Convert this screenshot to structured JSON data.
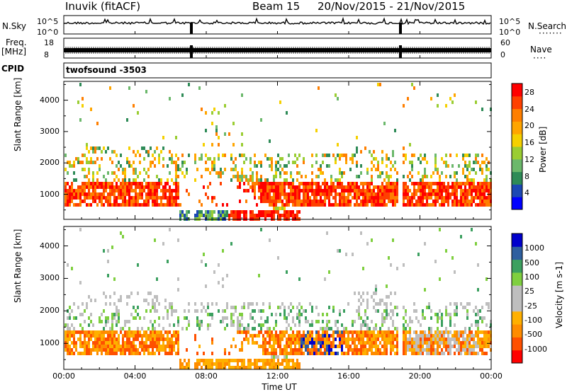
{
  "header": {
    "station": "Inuvik (fitACF)",
    "beam": "Beam 15",
    "dates": "20/Nov/2015 - 21/Nov/2015"
  },
  "top_panels": {
    "nsky": {
      "label": "N.Sky",
      "ticks": [
        "10^5",
        "10^0"
      ]
    },
    "nsearch": {
      "label": "N.Search",
      "ticks": [
        "10^5",
        "10^0"
      ],
      "dots": "·······"
    },
    "freq": {
      "label_line1": "Freq.",
      "label_line2": "[MHz]",
      "ticks": [
        "18",
        "8"
      ]
    },
    "nave": {
      "label": "Nave",
      "ticks": [
        "60",
        "0"
      ],
      "dots": "····"
    },
    "cpid": {
      "label": "CPID",
      "value": "twofsound -3503"
    }
  },
  "colors": {
    "power": [
      "#0000ff",
      "#1c48b4",
      "#2e8b57",
      "#6bb86b",
      "#9acd32",
      "#f5d000",
      "#ffa500",
      "#ff7f00",
      "#ff4000",
      "#ff0000"
    ],
    "velocity": [
      "#ff0000",
      "#ff5000",
      "#ff8c00",
      "#ffb000",
      "#bebebe",
      "#bebebe",
      "#7fcf3f",
      "#3ca060",
      "#2f5f9f",
      "#0000cc"
    ]
  },
  "chart_data": [
    {
      "type": "heatmap",
      "ylabel": "Slant Range [km]",
      "xlabel": "",
      "x_ticks": [
        "00:00",
        "04:00",
        "08:00",
        "12:00",
        "16:00",
        "20:00",
        "00:00"
      ],
      "y_ticks": [
        1000,
        2000,
        3000,
        4000
      ],
      "ylim": [
        200,
        4600
      ],
      "colorbar": {
        "label": "Power [dB]",
        "ticks": [
          4,
          8,
          12,
          16,
          20,
          24,
          28
        ],
        "range": [
          0,
          30
        ]
      }
    },
    {
      "type": "heatmap",
      "ylabel": "Slant Range [km]",
      "xlabel": "Time UT",
      "x_ticks": [
        "00:00",
        "04:00",
        "08:00",
        "12:00",
        "16:00",
        "20:00",
        "00:00"
      ],
      "y_ticks": [
        1000,
        2000,
        3000,
        4000
      ],
      "ylim": [
        200,
        4600
      ],
      "colorbar": {
        "label": "Velocity [m s-1]",
        "ticks": [
          1000,
          500,
          100,
          25,
          -25,
          -100,
          -500,
          -1000
        ]
      }
    }
  ]
}
